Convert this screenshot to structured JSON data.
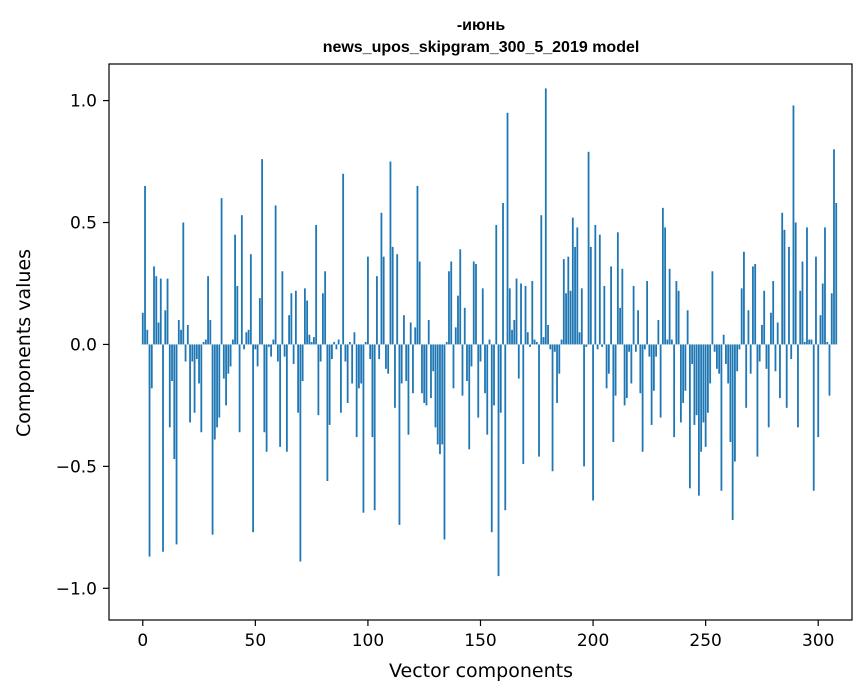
{
  "chart_data": {
    "type": "bar",
    "title_line1": "-июнь",
    "title_line2": "news_upos_skipgram_300_5_2019 model",
    "xlabel": "Vector components",
    "ylabel": "Components values",
    "xlim": [
      -15,
      315
    ],
    "ylim": [
      -1.13,
      1.15
    ],
    "xticks": [
      0,
      50,
      100,
      150,
      200,
      250,
      300
    ],
    "xtick_labels": [
      "0",
      "50",
      "100",
      "150",
      "200",
      "250",
      "300"
    ],
    "yticks": [
      -1.0,
      -0.5,
      0.0,
      0.5,
      1.0
    ],
    "ytick_labels": [
      "−1.0",
      "−0.5",
      "0.0",
      "0.5",
      "1.0"
    ],
    "bar_color": "#1f77b4",
    "grid": false,
    "values": [
      0.13,
      0.65,
      0.06,
      -0.87,
      -0.18,
      0.32,
      0.28,
      0.09,
      0.27,
      -0.85,
      0.14,
      0.27,
      -0.34,
      -0.15,
      -0.47,
      -0.82,
      0.1,
      0.06,
      0.5,
      -0.07,
      0.08,
      -0.32,
      -0.07,
      -0.28,
      -0.06,
      -0.16,
      -0.36,
      0.01,
      0.02,
      0.28,
      0.1,
      -0.78,
      -0.39,
      -0.34,
      -0.3,
      0.6,
      -0.14,
      -0.25,
      -0.12,
      -0.09,
      0.02,
      0.45,
      0.24,
      -0.36,
      0.53,
      -0.02,
      0.05,
      0.06,
      0.37,
      -0.77,
      -0.02,
      -0.09,
      0.19,
      0.76,
      -0.36,
      -0.44,
      -0.01,
      -0.05,
      0.02,
      0.57,
      -0.07,
      -0.42,
      0.3,
      -0.05,
      -0.44,
      0.12,
      0.21,
      -0.08,
      0.22,
      -0.28,
      -0.89,
      -0.15,
      0.23,
      0.18,
      0.04,
      0.01,
      0.03,
      0.49,
      -0.29,
      -0.07,
      0.21,
      0.3,
      -0.56,
      -0.33,
      -0.06,
      0.01,
      -0.02,
      0.02,
      -0.28,
      0.7,
      -0.07,
      -0.24,
      0.01,
      -0.16,
      0.05,
      -0.38,
      -0.18,
      -0.16,
      -0.69,
      0.01,
      0.36,
      -0.06,
      -0.38,
      -0.68,
      0.28,
      -0.06,
      0.54,
      0.36,
      -0.1,
      -0.12,
      0.75,
      0.4,
      -0.26,
      0.37,
      -0.74,
      -0.16,
      0.12,
      -0.15,
      -0.37,
      0.09,
      -0.2,
      0.07,
      0.65,
      0.34,
      -0.2,
      -0.24,
      -0.25,
      0.1,
      -0.22,
      -0.11,
      -0.34,
      -0.41,
      -0.45,
      -0.41,
      -0.8,
      0.01,
      0.3,
      0.34,
      -0.18,
      0.07,
      0.2,
      0.39,
      -0.21,
      0.15,
      -0.15,
      -0.43,
      -0.09,
      0.34,
      0.33,
      -0.3,
      -0.07,
      0.23,
      -0.2,
      -0.37,
      0.02,
      -0.77,
      -0.25,
      0.49,
      -0.95,
      -0.28,
      0.58,
      -0.68,
      0.95,
      0.23,
      0.06,
      0.1,
      0.27,
      -0.14,
      0.25,
      -0.49,
      0.24,
      0.05,
      -0.01,
      0.26,
      0.02,
      0.01,
      -0.46,
      0.53,
      0.03,
      1.05,
      0.08,
      -0.02,
      -0.52,
      -0.03,
      -0.24,
      -0.12,
      0.02,
      0.35,
      0.21,
      0.36,
      0.22,
      0.52,
      0.4,
      0.48,
      0.05,
      0.23,
      -0.5,
      -0.01,
      0.79,
      0.4,
      -0.64,
      0.49,
      -0.02,
      0.45,
      -0.01,
      0.24,
      -0.18,
      -0.12,
      0.32,
      -0.4,
      -0.21,
      0.46,
      0.15,
      0.31,
      -0.25,
      -0.22,
      -0.03,
      -0.16,
      0.24,
      -0.03,
      0.14,
      -0.2,
      -0.44,
      -0.02,
      0.26,
      -0.05,
      -0.33,
      -0.19,
      -0.05,
      0.1,
      -0.3,
      0.56,
      0.48,
      0.02,
      0.31,
      0.02,
      -0.38,
      0.26,
      0.22,
      -0.32,
      -0.24,
      -0.19,
      0.14,
      -0.59,
      -0.08,
      -0.33,
      -0.29,
      -0.62,
      -0.44,
      -0.32,
      -0.42,
      -0.28,
      -0.16,
      0.3,
      -0.03,
      -0.1,
      -0.12,
      -0.6,
      0.04,
      -0.08,
      -0.16,
      -0.4,
      -0.72,
      -0.48,
      -0.11,
      -0.02,
      0.23,
      0.38,
      -0.26,
      0.14,
      -0.12,
      0.32,
      0.33,
      -0.46,
      -0.07,
      0.08,
      0.22,
      -0.1,
      -0.34,
      0.13,
      0.26,
      -0.11,
      0.09,
      -0.22,
      0.54,
      0.47,
      -0.26,
      0.4,
      -0.06,
      0.98,
      0.5,
      -0.34,
      0.22,
      0.34,
      0.01,
      0.48,
      0.02,
      0.02,
      -0.6,
      0.36,
      -0.38,
      0.12,
      0.25,
      0.48,
      0.01,
      -0.21,
      0.21,
      0.8,
      0.58
    ]
  }
}
